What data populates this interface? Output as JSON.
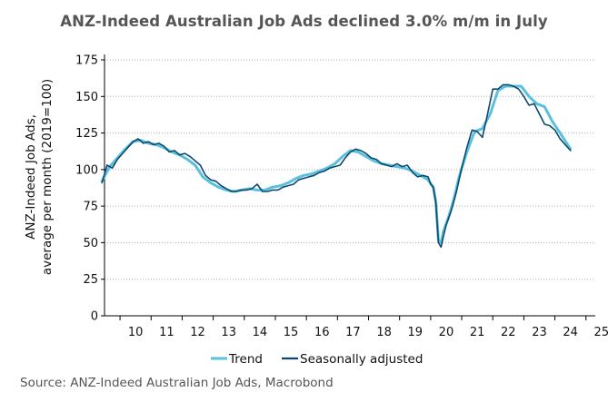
{
  "title": "ANZ-Indeed Australian Job Ads declined 3.0% m/m in July",
  "source": "Source: ANZ-Indeed Australian Job Ads, Macrobond",
  "colors": {
    "trend": "#5bc0de",
    "seasonally_adjusted": "#0b4a6e",
    "grid": "#b0b0b0",
    "axis": "#000000"
  },
  "chart_data": {
    "type": "line",
    "ylabel_lines": [
      "ANZ-Indeed Job Ads,",
      "average per month (2019=100)"
    ],
    "ylim": [
      0,
      175
    ],
    "yticks": [
      0,
      25,
      50,
      75,
      100,
      125,
      150,
      175
    ],
    "xlim": [
      2009.5,
      2025.3
    ],
    "xtick_labels": [
      "10",
      "11",
      "12",
      "13",
      "14",
      "15",
      "16",
      "17",
      "18",
      "19",
      "20",
      "21",
      "22",
      "23",
      "24",
      "25"
    ],
    "xtick_years": [
      2010,
      2011,
      2012,
      2013,
      2014,
      2015,
      2016,
      2017,
      2018,
      2019,
      2020,
      2021,
      2022,
      2023,
      2024,
      2025
    ],
    "grid": "horizontal dotted",
    "legend_position": "bottom",
    "series": [
      {
        "name": "Trend",
        "key": "trend",
        "x": [
          "2009-06",
          "2009-09",
          "2009-12",
          "2010-03",
          "2010-06",
          "2010-09",
          "2010-12",
          "2011-03",
          "2011-06",
          "2011-09",
          "2011-12",
          "2012-03",
          "2012-06",
          "2012-09",
          "2012-12",
          "2013-03",
          "2013-06",
          "2013-09",
          "2013-12",
          "2014-03",
          "2014-06",
          "2014-09",
          "2014-12",
          "2015-03",
          "2015-06",
          "2015-09",
          "2015-12",
          "2016-03",
          "2016-06",
          "2016-09",
          "2016-12",
          "2017-03",
          "2017-06",
          "2017-09",
          "2017-12",
          "2018-03",
          "2018-06",
          "2018-09",
          "2018-12",
          "2019-03",
          "2019-06",
          "2019-09",
          "2019-12",
          "2020-02",
          "2020-03",
          "2020-04",
          "2020-05",
          "2020-06",
          "2020-08",
          "2020-10",
          "2020-12",
          "2021-03",
          "2021-06",
          "2021-09",
          "2021-12",
          "2022-03",
          "2022-06",
          "2022-09",
          "2022-12",
          "2023-03",
          "2023-06",
          "2023-09",
          "2023-12",
          "2024-03",
          "2024-07"
        ],
        "values": [
          92,
          102,
          108,
          114,
          119,
          120,
          118,
          117,
          115,
          112,
          110,
          107,
          103,
          95,
          91,
          88,
          86,
          85,
          86,
          87,
          86,
          86,
          88,
          89,
          91,
          94,
          96,
          97,
          99,
          101,
          104,
          109,
          113,
          112,
          109,
          106,
          104,
          103,
          102,
          101,
          99,
          96,
          93,
          88,
          78,
          52,
          50,
          58,
          68,
          80,
          95,
          112,
          126,
          128,
          138,
          154,
          157,
          157,
          157,
          150,
          145,
          143,
          133,
          125,
          114
        ]
      },
      {
        "name": "Seasonally adjusted",
        "key": "seasonally_adjusted",
        "x": [
          "2009-06",
          "2009-08",
          "2009-10",
          "2009-12",
          "2010-02",
          "2010-04",
          "2010-06",
          "2010-08",
          "2010-10",
          "2010-12",
          "2011-02",
          "2011-04",
          "2011-06",
          "2011-08",
          "2011-10",
          "2011-12",
          "2012-02",
          "2012-04",
          "2012-06",
          "2012-08",
          "2012-10",
          "2012-12",
          "2013-02",
          "2013-04",
          "2013-06",
          "2013-08",
          "2013-10",
          "2013-12",
          "2014-02",
          "2014-04",
          "2014-06",
          "2014-08",
          "2014-10",
          "2014-12",
          "2015-02",
          "2015-04",
          "2015-06",
          "2015-08",
          "2015-10",
          "2015-12",
          "2016-02",
          "2016-04",
          "2016-06",
          "2016-08",
          "2016-10",
          "2016-12",
          "2017-02",
          "2017-04",
          "2017-06",
          "2017-08",
          "2017-10",
          "2017-12",
          "2018-02",
          "2018-04",
          "2018-06",
          "2018-08",
          "2018-10",
          "2018-12",
          "2019-02",
          "2019-04",
          "2019-06",
          "2019-08",
          "2019-10",
          "2019-12",
          "2020-01",
          "2020-02",
          "2020-03",
          "2020-04",
          "2020-05",
          "2020-06",
          "2020-07",
          "2020-09",
          "2020-11",
          "2021-01",
          "2021-03",
          "2021-05",
          "2021-07",
          "2021-09",
          "2021-11",
          "2022-01",
          "2022-03",
          "2022-05",
          "2022-07",
          "2022-09",
          "2022-11",
          "2023-01",
          "2023-03",
          "2023-05",
          "2023-07",
          "2023-09",
          "2023-11",
          "2024-01",
          "2024-03",
          "2024-05",
          "2024-07"
        ],
        "values": [
          91,
          103,
          101,
          107,
          111,
          115,
          119,
          121,
          118,
          119,
          117,
          118,
          116,
          112,
          113,
          110,
          111,
          109,
          106,
          103,
          96,
          93,
          92,
          89,
          87,
          85,
          85,
          86,
          86,
          87,
          90,
          85,
          85,
          86,
          86,
          88,
          89,
          90,
          93,
          94,
          95,
          96,
          98,
          99,
          101,
          102,
          103,
          108,
          112,
          114,
          113,
          111,
          108,
          107,
          104,
          103,
          102,
          104,
          102,
          103,
          98,
          95,
          96,
          95,
          90,
          88,
          77,
          50,
          47,
          55,
          62,
          72,
          85,
          101,
          115,
          127,
          126,
          122,
          138,
          155,
          155,
          158,
          158,
          157,
          155,
          150,
          144,
          145,
          138,
          131,
          130,
          127,
          121,
          117,
          113
        ]
      }
    ]
  }
}
